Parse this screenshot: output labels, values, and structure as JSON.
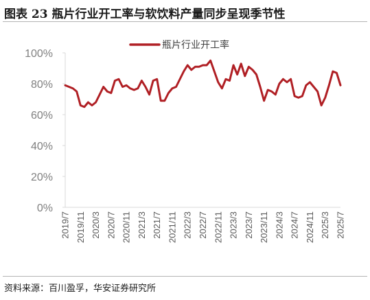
{
  "figure_title": "图表 23 瓶片行业开工率与软饮料产量同步呈现季节性",
  "source_note": "资料来源：百川盈孚，华安证券研究所",
  "colors": {
    "series": "#b01f24",
    "axis": "#d9d9d9",
    "tick_text": "#7f7f7f",
    "rule": "#b3b3b3"
  },
  "chart_data": {
    "type": "line",
    "title": "",
    "xlabel": "",
    "ylabel": "",
    "ylim": [
      0,
      100
    ],
    "y_ticks": [
      0,
      20,
      40,
      60,
      80,
      100
    ],
    "y_tick_labels": [
      "0%",
      "20%",
      "40%",
      "60%",
      "80%",
      "100%"
    ],
    "x_tick_labels": [
      "2019/7",
      "2019/11",
      "2020/3",
      "2020/7",
      "2020/11",
      "2021/3",
      "2021/7",
      "2021/11",
      "2022/3",
      "2022/7",
      "2022/11",
      "2023/3",
      "2023/7",
      "2023/11",
      "2024/3",
      "2024/7",
      "2024/11",
      "2025/3",
      "2025/7"
    ],
    "grid": false,
    "legend": "top",
    "series": [
      {
        "name": "瓶片行业开工率",
        "x": [
          "2019/7",
          "2019/8",
          "2019/9",
          "2019/10",
          "2019/11",
          "2019/12",
          "2020/1",
          "2020/2",
          "2020/3",
          "2020/4",
          "2020/5",
          "2020/6",
          "2020/7",
          "2020/8",
          "2020/9",
          "2020/10",
          "2020/11",
          "2020/12",
          "2021/1",
          "2021/2",
          "2021/3",
          "2021/4",
          "2021/5",
          "2021/6",
          "2021/7",
          "2021/8",
          "2021/9",
          "2021/10",
          "2021/11",
          "2021/12",
          "2022/1",
          "2022/2",
          "2022/3",
          "2022/4",
          "2022/5",
          "2022/6",
          "2022/7",
          "2022/8",
          "2022/9",
          "2022/10",
          "2022/11",
          "2022/12",
          "2023/1",
          "2023/2",
          "2023/3",
          "2023/4",
          "2023/5",
          "2023/6",
          "2023/7",
          "2023/8",
          "2023/9",
          "2023/10",
          "2023/11",
          "2023/12",
          "2024/1",
          "2024/2",
          "2024/3",
          "2024/4",
          "2024/5",
          "2024/6",
          "2024/7",
          "2024/8",
          "2024/9",
          "2024/10",
          "2024/11",
          "2024/12",
          "2025/1",
          "2025/2",
          "2025/3",
          "2025/4",
          "2025/5",
          "2025/6",
          "2025/7"
        ],
        "values": [
          79,
          78,
          77,
          75,
          66,
          65,
          68,
          66,
          68,
          73,
          78,
          75,
          74,
          82,
          83,
          78,
          79,
          77,
          76,
          77,
          82,
          78,
          73,
          82,
          83,
          69,
          69,
          74,
          77,
          78,
          83,
          88,
          92,
          89,
          91,
          91,
          92,
          92,
          95,
          88,
          81,
          77,
          83,
          82,
          92,
          86,
          93,
          85,
          91,
          89,
          86,
          78,
          69,
          76,
          75,
          73,
          80,
          83,
          81,
          83,
          72,
          71,
          72,
          79,
          81,
          78,
          75,
          66,
          71,
          79,
          88,
          87,
          79
        ]
      }
    ]
  }
}
